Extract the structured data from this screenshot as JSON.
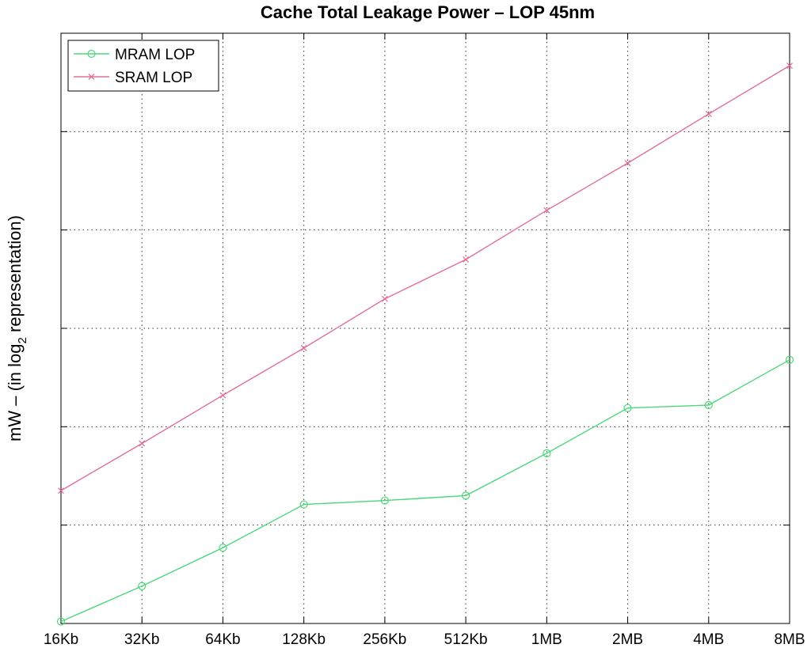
{
  "chart_data": {
    "type": "line",
    "title": "Cache Total Leakage Power – LOP  45nm",
    "xlabel": "",
    "ylabel": "mW – (in log",
    "ylabel_subscript": "2",
    "ylabel_suffix": " representation)",
    "categories": [
      "16Kb",
      "32Kb",
      "64Kb",
      "128Kb",
      "256Kb",
      "512Kb",
      "1MB",
      "2MB",
      "4MB",
      "8MB"
    ],
    "ylim": [
      0,
      6
    ],
    "y_ticks": [
      1,
      2,
      3,
      4,
      5
    ],
    "y_ticks_labeled": false,
    "grid": true,
    "legend_position": "top-left",
    "series": [
      {
        "name": "MRAM LOP",
        "color": "#4cd87a",
        "marker": "circle",
        "values": [
          0.02,
          0.38,
          0.77,
          1.21,
          1.25,
          1.3,
          1.73,
          2.19,
          2.22,
          2.68
        ]
      },
      {
        "name": "SRAM LOP",
        "color": "#e0709a",
        "marker": "x",
        "values": [
          1.35,
          1.83,
          2.32,
          2.8,
          3.3,
          3.7,
          4.2,
          4.68,
          5.18,
          5.67
        ]
      }
    ]
  }
}
